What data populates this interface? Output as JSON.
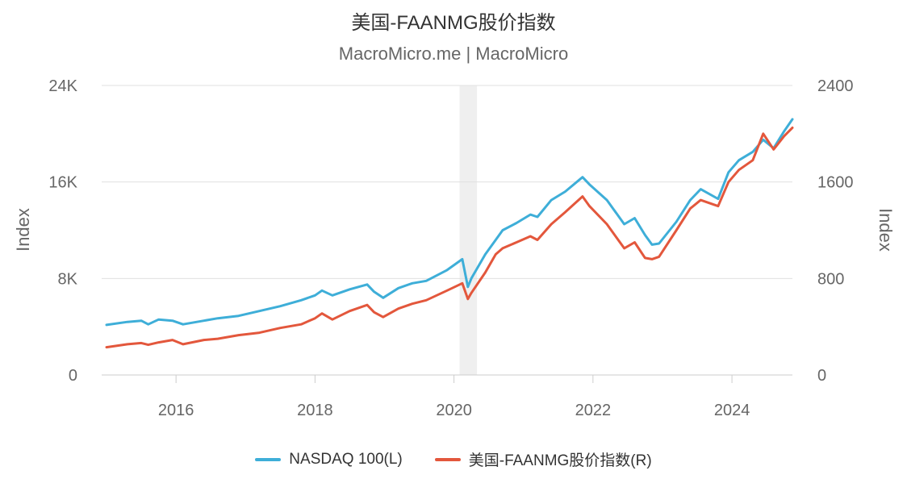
{
  "chart_data": {
    "type": "line",
    "title": "美国-FAANMG股价指数",
    "subtitle": "MacroMicro.me | MacroMicro",
    "ylabel_left": "Index",
    "ylabel_right": "Index",
    "ylim_left": [
      0,
      24000
    ],
    "ylim_right": [
      0,
      2400
    ],
    "yticks_left": [
      "0",
      "8K",
      "16K",
      "24K"
    ],
    "yticks_right": [
      "0",
      "800",
      "1600",
      "2400"
    ],
    "xlim": [
      2014.93,
      2024.87
    ],
    "xticks": [
      "2016",
      "2018",
      "2020",
      "2022",
      "2024"
    ],
    "grid": true,
    "legend_position": "bottom",
    "recession_band": [
      2020.08,
      2020.33
    ],
    "series": [
      {
        "name": "NASDAQ 100(L)",
        "axis": "left",
        "color": "#3eaed8",
        "x": [
          2015.0,
          2015.3,
          2015.5,
          2015.6,
          2015.75,
          2015.95,
          2016.1,
          2016.4,
          2016.6,
          2016.9,
          2017.2,
          2017.5,
          2017.8,
          2018.0,
          2018.1,
          2018.25,
          2018.5,
          2018.75,
          2018.85,
          2018.98,
          2019.2,
          2019.4,
          2019.6,
          2019.9,
          2020.12,
          2020.2,
          2020.25,
          2020.45,
          2020.6,
          2020.7,
          2020.9,
          2021.1,
          2021.2,
          2021.4,
          2021.6,
          2021.85,
          2021.95,
          2022.2,
          2022.45,
          2022.6,
          2022.75,
          2022.85,
          2022.95,
          2023.2,
          2023.4,
          2023.55,
          2023.8,
          2023.95,
          2024.1,
          2024.3,
          2024.45,
          2024.6,
          2024.75,
          2024.87
        ],
        "y": [
          4150,
          4400,
          4500,
          4200,
          4600,
          4500,
          4200,
          4500,
          4700,
          4900,
          5300,
          5700,
          6200,
          6600,
          7000,
          6600,
          7100,
          7500,
          6900,
          6400,
          7200,
          7600,
          7800,
          8700,
          9600,
          7300,
          8000,
          10000,
          11200,
          12000,
          12600,
          13300,
          13100,
          14500,
          15200,
          16400,
          15800,
          14500,
          12500,
          13000,
          11600,
          10800,
          10900,
          12700,
          14500,
          15400,
          14600,
          16800,
          17800,
          18500,
          19500,
          18800,
          20200,
          21200
        ]
      },
      {
        "name": "美国-FAANMG股价指数(R)",
        "axis": "right",
        "color": "#e3573c",
        "x": [
          2015.0,
          2015.3,
          2015.5,
          2015.6,
          2015.75,
          2015.95,
          2016.1,
          2016.4,
          2016.6,
          2016.9,
          2017.2,
          2017.5,
          2017.8,
          2018.0,
          2018.1,
          2018.25,
          2018.5,
          2018.75,
          2018.85,
          2018.98,
          2019.2,
          2019.4,
          2019.6,
          2019.9,
          2020.12,
          2020.2,
          2020.25,
          2020.45,
          2020.6,
          2020.7,
          2020.9,
          2021.1,
          2021.2,
          2021.4,
          2021.6,
          2021.85,
          2021.95,
          2022.2,
          2022.45,
          2022.6,
          2022.75,
          2022.85,
          2022.95,
          2023.2,
          2023.4,
          2023.55,
          2023.8,
          2023.95,
          2024.1,
          2024.3,
          2024.45,
          2024.6,
          2024.75,
          2024.87
        ],
        "y": [
          230,
          255,
          265,
          250,
          270,
          290,
          255,
          290,
          300,
          330,
          350,
          390,
          420,
          470,
          510,
          460,
          530,
          580,
          520,
          480,
          550,
          590,
          620,
          700,
          760,
          630,
          680,
          850,
          1000,
          1050,
          1100,
          1150,
          1120,
          1250,
          1350,
          1480,
          1400,
          1250,
          1050,
          1100,
          970,
          960,
          980,
          1200,
          1380,
          1450,
          1400,
          1600,
          1700,
          1780,
          2000,
          1870,
          1980,
          2050
        ]
      }
    ]
  }
}
